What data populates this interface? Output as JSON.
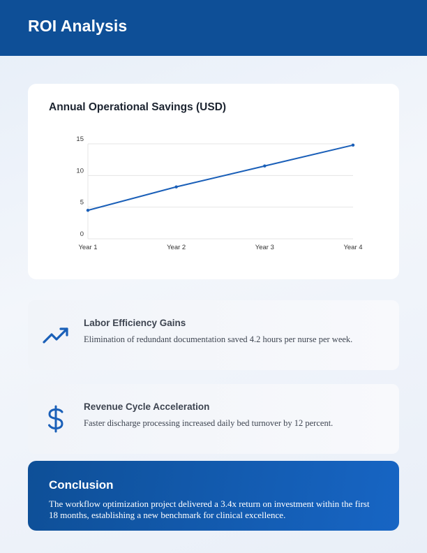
{
  "header": {
    "title": "ROI Analysis"
  },
  "chart_data": {
    "type": "line",
    "title": "Annual Operational Savings (USD)",
    "categories": [
      "Year 1",
      "Year 2",
      "Year 3",
      "Year 4"
    ],
    "series": [
      {
        "values": [
          4.5,
          8.2,
          11.5,
          14.8
        ]
      }
    ],
    "yticks": [
      0,
      5,
      10,
      15
    ],
    "ylim": [
      0,
      15
    ],
    "grid": true,
    "legend": "none",
    "color": "#1a5fb8"
  },
  "features": [
    {
      "icon": "trending-up-icon",
      "title": "Labor Efficiency Gains",
      "description": "Elimination of redundant documentation saved 4.2 hours per nurse per week."
    },
    {
      "icon": "dollar-sign-icon",
      "title": "Revenue Cycle Acceleration",
      "description": "Faster discharge processing increased daily bed turnover by 12 percent."
    }
  ],
  "conclusion": {
    "title": "Conclusion",
    "text": "The workflow optimization project delivered a 3.4x return on investment within the first 18 months, establishing a new benchmark for clinical excellence."
  },
  "colors": {
    "brand": "#0e4f97",
    "accent": "#1a5fb8",
    "icon": "#1a5fb8"
  }
}
